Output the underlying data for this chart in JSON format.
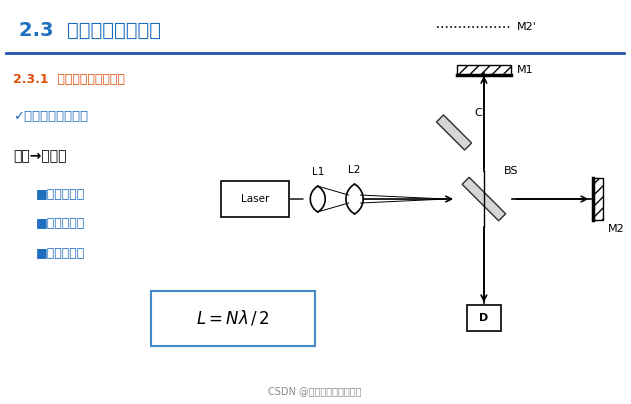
{
  "title": "2.3  激光干涉仪的构成",
  "subtitle": "2.3.1  传统迈克尔逊干涉仪",
  "check_text": "✓激光干涉仪的基础",
  "white_laser": "白光→激光：",
  "bullet1": "■程差补偿；",
  "bullet2": "■半波损失；",
  "bullet3": "■零级条纹；",
  "footer": "CSDN @文火冰糖的硅基工坊",
  "title_color": "#1e6fbe",
  "subtitle_color": "#e05010",
  "check_color": "#1e6fbe",
  "bullet_color": "#1e6fbe",
  "bg_color": "#ffffff",
  "line_color": "#000000",
  "border_color": "#4488cc"
}
